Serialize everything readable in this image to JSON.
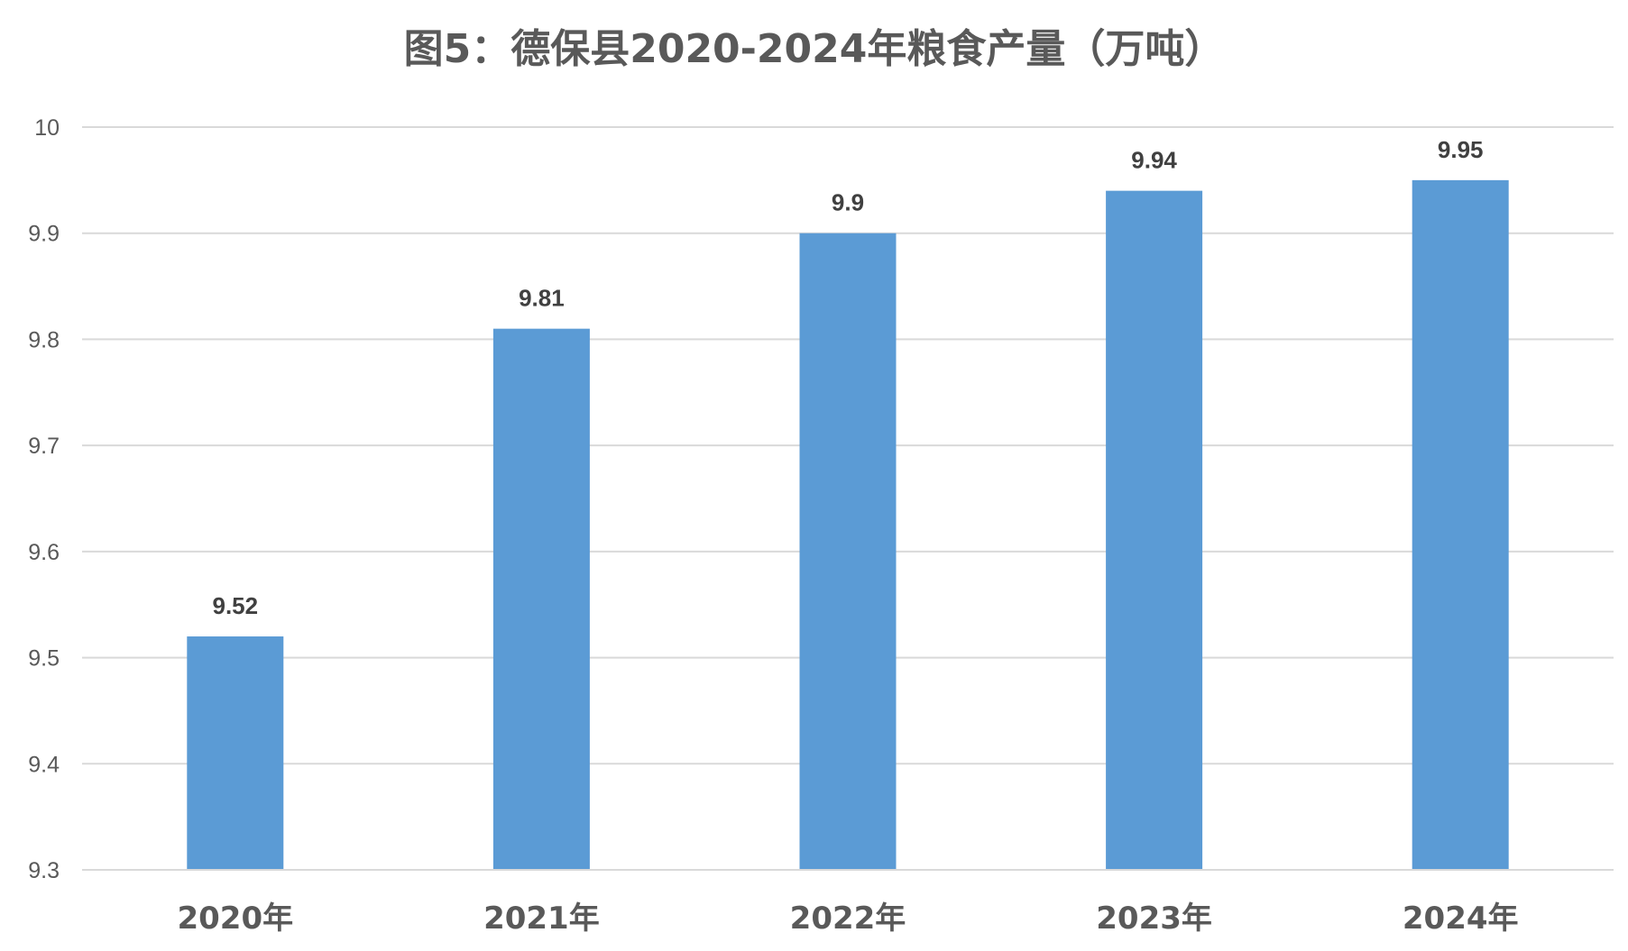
{
  "chart_data": {
    "type": "bar",
    "title": "图5：德保县2020-2024年粮食产量（万吨）",
    "categories": [
      "2020年",
      "2021年",
      "2022年",
      "2023年",
      "2024年"
    ],
    "values": [
      9.52,
      9.81,
      9.9,
      9.94,
      9.95
    ],
    "data_labels": [
      "9.52",
      "9.81",
      "9.9",
      "9.94",
      "9.95"
    ],
    "xlabel": "",
    "ylabel": "",
    "ylim": [
      9.3,
      10
    ],
    "yticks": [
      "9.3",
      "9.4",
      "9.5",
      "9.6",
      "9.7",
      "9.8",
      "9.9",
      "10"
    ],
    "grid": true,
    "legend": "none",
    "bar_color": "#5B9BD5",
    "grid_color": "#D9D9D9",
    "text_color": "#595959"
  }
}
